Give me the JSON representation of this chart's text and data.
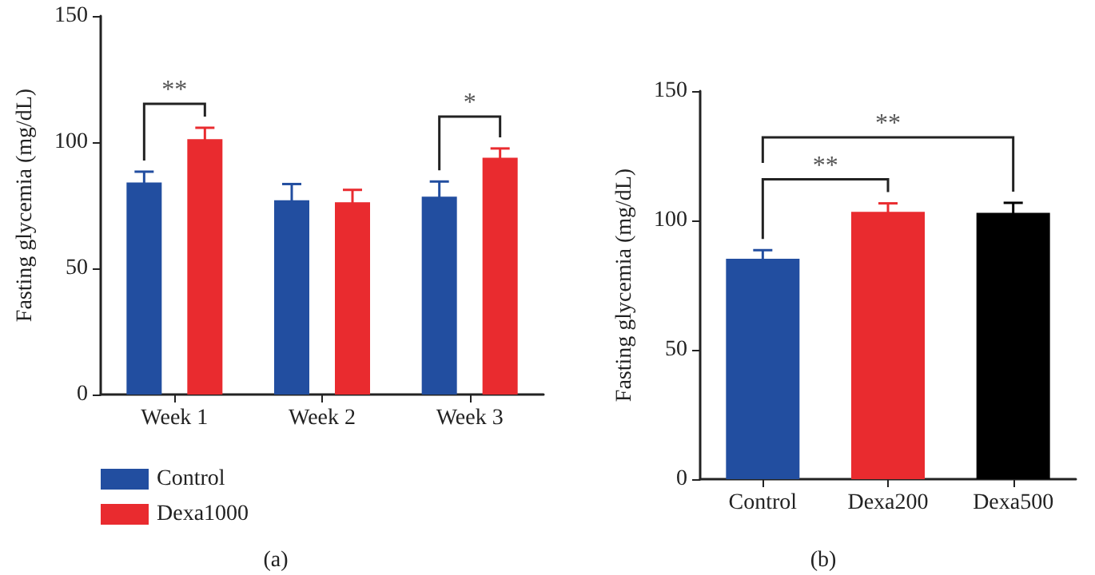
{
  "chart_data": [
    {
      "type": "bar",
      "ylabel": "Fasting glycemia (mg/dL)",
      "categories": [
        "Week 1",
        "Week 2",
        "Week 3"
      ],
      "series": [
        {
          "name": "Control",
          "color": "#224ea0",
          "values": [
            84,
            77,
            78.4
          ],
          "errors": [
            4.3,
            6.4,
            6
          ]
        },
        {
          "name": "Dexa1000",
          "color": "#e92b2f",
          "values": [
            101.2,
            76.2,
            93.8
          ],
          "errors": [
            4.5,
            4.9,
            3.7
          ]
        }
      ],
      "ylim": [
        0,
        150
      ],
      "yticks": [
        0,
        50,
        100,
        150
      ],
      "grid": false,
      "legend": "bottom left",
      "annotations": [
        "**",
        "*",
        "(a)"
      ]
    },
    {
      "type": "bar",
      "ylabel": "Fasting glycemia (mg/dL)",
      "categories": [
        "Control",
        "Dexa200",
        "Dexa500"
      ],
      "values": [
        85.2,
        103.3,
        102.9
      ],
      "errors": [
        3.3,
        3.3,
        3.9
      ],
      "colors": [
        "#224ea0",
        "#e92b2f",
        "#000000"
      ],
      "ylim": [
        0,
        150
      ],
      "yticks": [
        0,
        50,
        100,
        150
      ],
      "grid": false,
      "legend": false,
      "annotations": [
        "**",
        "**",
        "(b)"
      ]
    }
  ]
}
